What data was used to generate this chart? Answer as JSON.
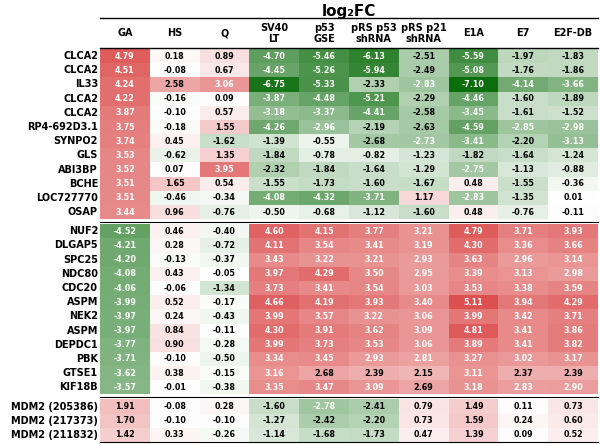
{
  "title": "log₂FC",
  "col_labels": [
    "GA",
    "HS",
    "Q",
    "SV40\nLT",
    "p53\nGSE",
    "pRS p53\nshRNA",
    "pRS p21\nshRNA",
    "E1A",
    "E7",
    "E2F-DB"
  ],
  "group1_rows": [
    {
      "gene": "CLCA2",
      "vals": [
        4.79,
        0.18,
        0.89,
        -4.7,
        -5.46,
        -6.13,
        -2.51,
        -5.59,
        -1.97,
        -1.83
      ]
    },
    {
      "gene": "CLCA2",
      "vals": [
        4.51,
        -0.08,
        0.67,
        -4.45,
        -5.26,
        -5.94,
        -2.49,
        -5.08,
        -1.76,
        -1.86
      ]
    },
    {
      "gene": "IL33",
      "vals": [
        4.24,
        2.58,
        3.06,
        -6.75,
        -5.33,
        -2.33,
        -2.83,
        -7.1,
        -4.14,
        -3.66
      ]
    },
    {
      "gene": "CLCA2",
      "vals": [
        4.22,
        -0.16,
        0.09,
        -3.87,
        -4.48,
        -5.21,
        -2.29,
        -4.46,
        -1.6,
        -1.89
      ]
    },
    {
      "gene": "CLCA2",
      "vals": [
        3.87,
        -0.1,
        0.57,
        -3.18,
        -3.37,
        -4.41,
        -2.58,
        -3.45,
        -1.61,
        -1.52
      ]
    },
    {
      "gene": "RP4-692D3.1",
      "vals": [
        3.75,
        -0.18,
        1.55,
        -4.26,
        -2.96,
        -2.19,
        -2.63,
        -4.59,
        -2.85,
        -2.98
      ]
    },
    {
      "gene": "SYNPO2",
      "vals": [
        3.74,
        0.45,
        -1.62,
        -1.39,
        -0.55,
        -2.68,
        -2.73,
        -3.41,
        -2.2,
        -3.13
      ]
    },
    {
      "gene": "GLS",
      "vals": [
        3.53,
        -0.62,
        1.35,
        -1.84,
        -0.78,
        -0.82,
        -1.23,
        -1.82,
        -1.64,
        -1.24
      ]
    },
    {
      "gene": "ABI3BP",
      "vals": [
        3.52,
        0.07,
        3.95,
        -2.32,
        -1.84,
        -1.64,
        -1.29,
        -2.75,
        -1.13,
        -0.88
      ]
    },
    {
      "gene": "BCHE",
      "vals": [
        3.51,
        1.65,
        0.54,
        -1.55,
        -1.73,
        -1.6,
        -1.67,
        0.48,
        -1.55,
        -0.36
      ]
    },
    {
      "gene": "LOC727770",
      "vals": [
        3.51,
        -0.46,
        -0.34,
        -4.08,
        -4.32,
        -3.71,
        1.17,
        -2.83,
        -1.35,
        0.01
      ]
    },
    {
      "gene": "OSAP",
      "vals": [
        3.44,
        0.96,
        -0.76,
        -0.5,
        -0.68,
        -1.12,
        -1.6,
        0.48,
        -0.76,
        -0.11
      ]
    }
  ],
  "group2_rows": [
    {
      "gene": "NUF2",
      "vals": [
        -4.52,
        0.46,
        -0.4,
        4.6,
        4.15,
        3.77,
        3.21,
        4.79,
        3.71,
        3.93
      ]
    },
    {
      "gene": "DLGAP5",
      "vals": [
        -4.21,
        0.28,
        -0.72,
        4.11,
        3.54,
        3.41,
        3.19,
        4.3,
        3.36,
        3.66
      ]
    },
    {
      "gene": "SPC25",
      "vals": [
        -4.2,
        -0.13,
        -0.37,
        3.43,
        3.22,
        3.21,
        2.93,
        3.63,
        2.96,
        3.14
      ]
    },
    {
      "gene": "NDC80",
      "vals": [
        -4.08,
        0.43,
        -0.05,
        3.97,
        4.29,
        3.5,
        2.95,
        3.39,
        3.13,
        2.98
      ]
    },
    {
      "gene": "CDC20",
      "vals": [
        -4.06,
        -0.06,
        -1.34,
        3.73,
        3.41,
        3.54,
        3.03,
        3.53,
        3.38,
        3.59
      ]
    },
    {
      "gene": "ASPM",
      "vals": [
        -3.99,
        0.52,
        -0.17,
        4.66,
        4.19,
        3.93,
        3.4,
        5.11,
        3.94,
        4.29
      ]
    },
    {
      "gene": "NEK2",
      "vals": [
        -3.97,
        0.24,
        -0.43,
        3.99,
        3.57,
        3.22,
        3.06,
        3.99,
        3.42,
        3.71
      ]
    },
    {
      "gene": "ASPM",
      "vals": [
        -3.97,
        0.84,
        -0.11,
        4.3,
        3.91,
        3.62,
        3.09,
        4.81,
        3.41,
        3.86
      ]
    },
    {
      "gene": "DEPDC1",
      "vals": [
        -3.77,
        0.9,
        -0.28,
        3.99,
        3.73,
        3.53,
        3.06,
        3.89,
        3.41,
        3.82
      ]
    },
    {
      "gene": "PBK",
      "vals": [
        -3.71,
        -0.1,
        -0.5,
        3.34,
        3.45,
        2.93,
        2.81,
        3.27,
        3.02,
        3.17
      ]
    },
    {
      "gene": "GTSE1",
      "vals": [
        -3.62,
        0.38,
        -0.15,
        3.16,
        2.68,
        2.39,
        2.15,
        3.11,
        2.37,
        2.39
      ]
    },
    {
      "gene": "KIF18B",
      "vals": [
        -3.57,
        -0.01,
        -0.38,
        3.35,
        3.47,
        3.09,
        2.69,
        3.18,
        2.83,
        2.9
      ]
    }
  ],
  "group3_rows": [
    {
      "gene": "MDM2 (205386)",
      "vals": [
        1.91,
        -0.08,
        0.28,
        -1.6,
        -2.78,
        -2.41,
        0.79,
        1.49,
        0.11,
        0.73
      ]
    },
    {
      "gene": "MDM2 (217373)",
      "vals": [
        1.7,
        -0.1,
        -0.1,
        -1.27,
        -2.42,
        -2.2,
        0.73,
        1.59,
        0.24,
        0.6
      ]
    },
    {
      "gene": "MDM2 (211832)",
      "vals": [
        1.42,
        0.33,
        -0.26,
        -1.14,
        -1.68,
        -1.73,
        0.47,
        1.39,
        0.09,
        0.52
      ]
    }
  ],
  "vmin": -7.5,
  "vmax": 7.5,
  "green_color": "#006600",
  "red_color": "#cc0000",
  "white_color": "#ffffff",
  "title_fontsize": 11,
  "header_fontsize": 7.0,
  "gene_fontsize": 7.0,
  "cell_fontsize": 5.8
}
